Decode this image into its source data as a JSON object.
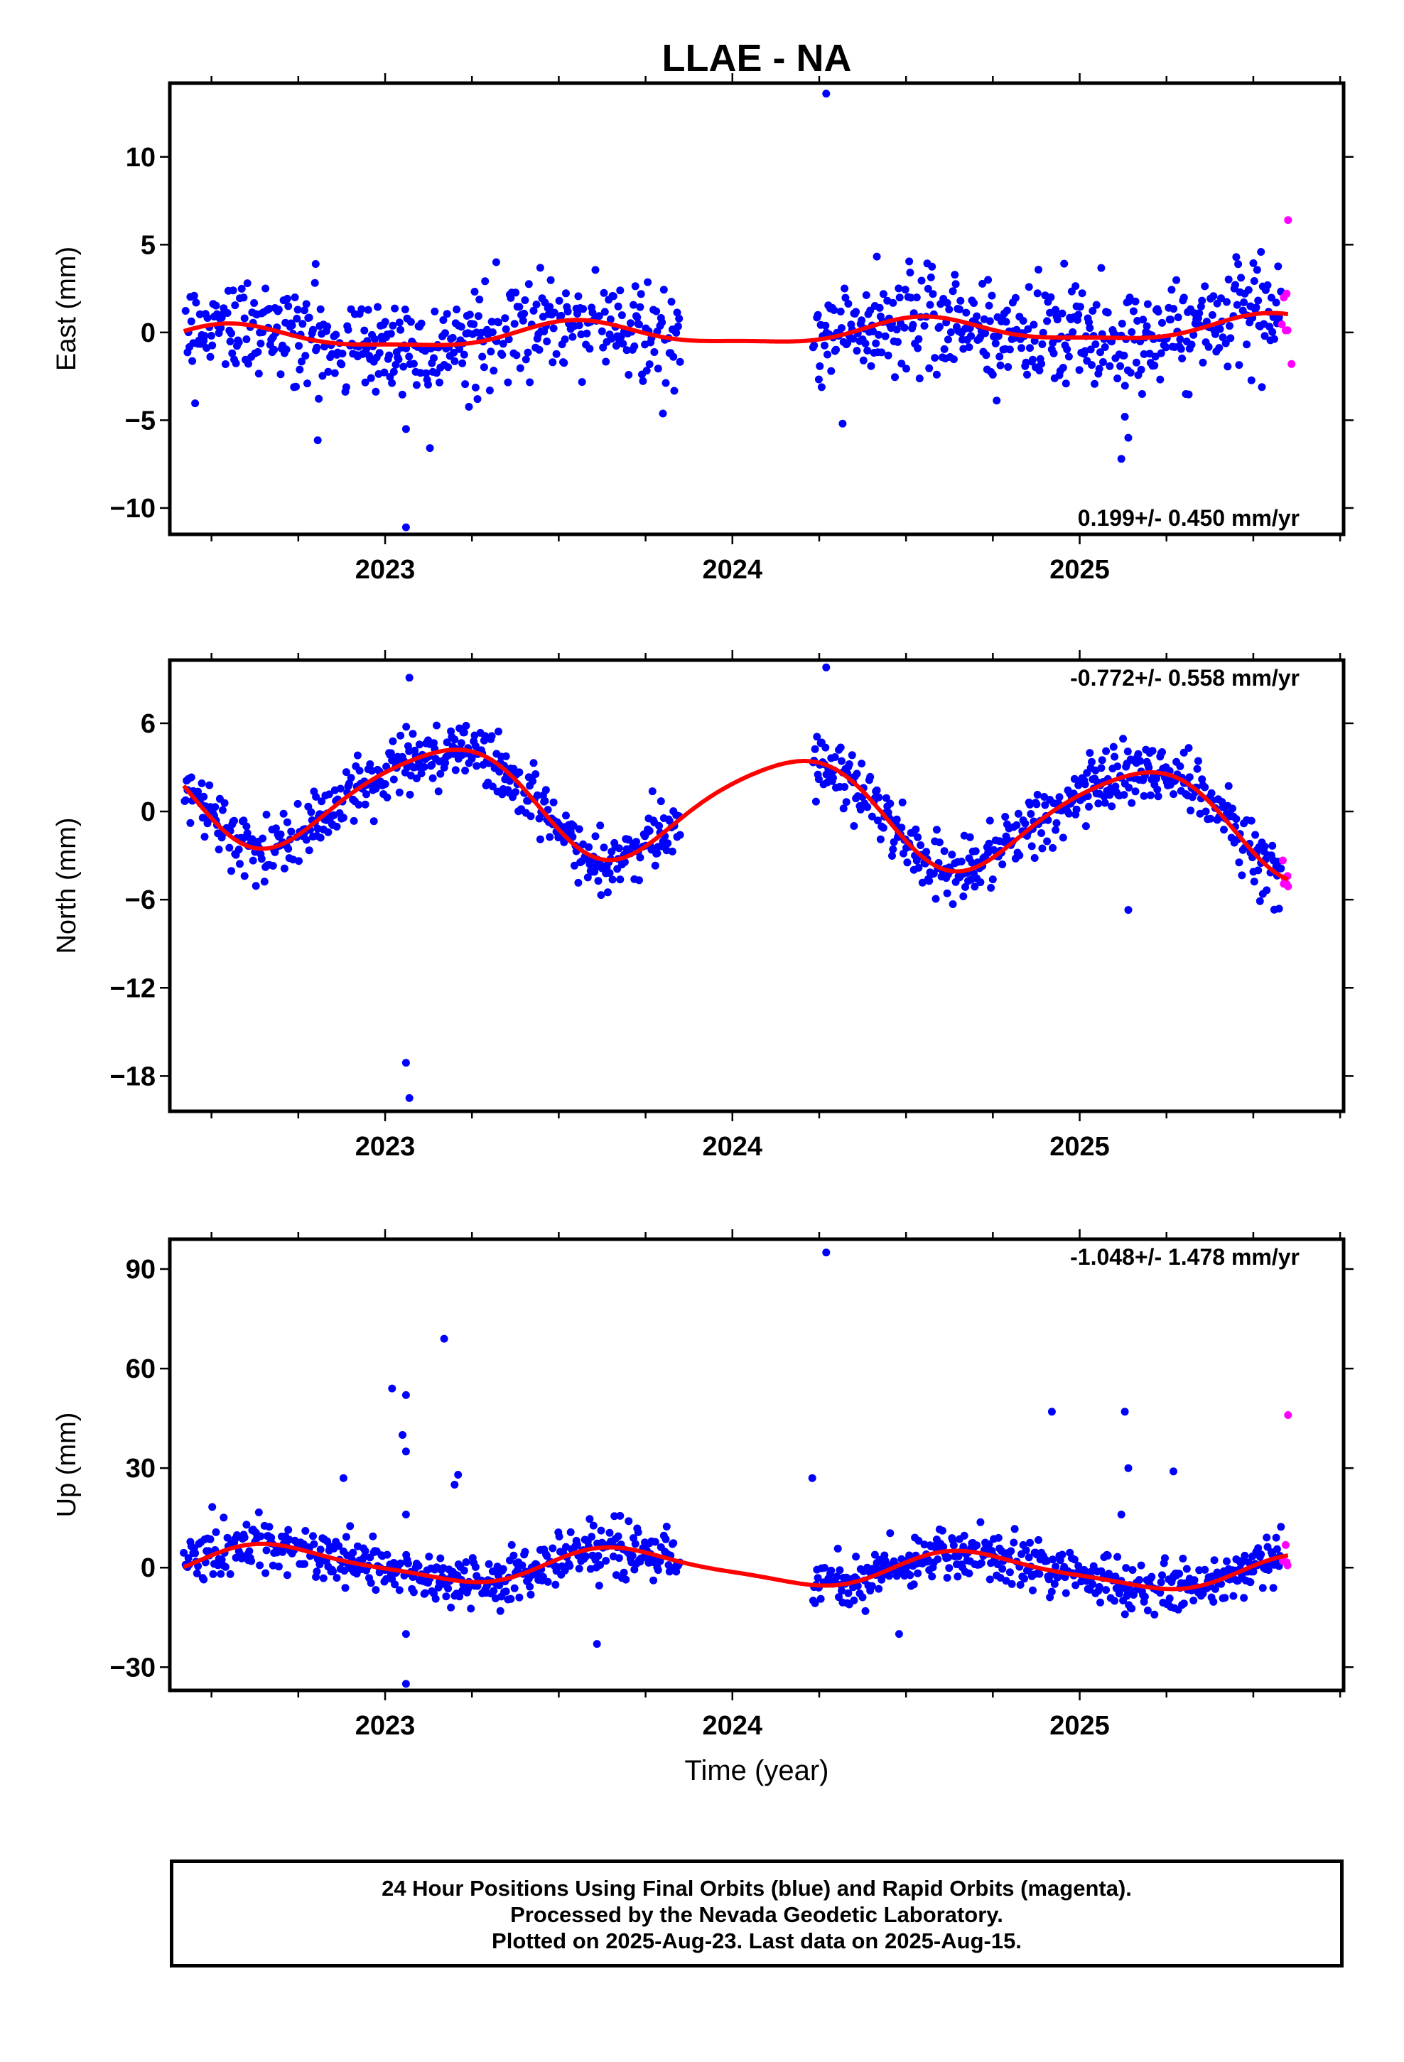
{
  "figure": {
    "title": "LLAE - NA",
    "xlabel": "Time (year)",
    "footer": [
      "24 Hour Positions Using Final Orbits (blue) and Rapid Orbits (magenta).",
      "Processed by the Nevada Geodetic Laboratory.",
      "Plotted on 2025-Aug-23. Last data on 2025-Aug-15."
    ]
  },
  "colors": {
    "final": "#0000ff",
    "rapid": "#ff00ff",
    "model": "#ff0000",
    "frame": "#000000"
  },
  "chart_data": [
    {
      "type": "scatter",
      "component": "east",
      "ylabel": "East (mm)",
      "rate_label": "0.199+/- 0.450 mm/yr",
      "rate_position": "bottom-right",
      "xlim": [
        2022.38,
        2025.76
      ],
      "ylim": [
        -11.5,
        14.2
      ],
      "yticks": [
        -10,
        -5,
        0,
        5,
        10
      ],
      "xticks": [
        2023,
        2024,
        2025
      ],
      "model": {
        "offset": -0.05,
        "trend": 0.199,
        "annual_amp": 0.65,
        "annual_phase_deg": 250,
        "semiannual_amp": 0.2,
        "semiannual_phase_deg": 60,
        "ref_year": 2024.0
      },
      "data_span": [
        2022.42,
        2025.6
      ],
      "data_gap": [
        2023.85,
        2024.23
      ],
      "noise_sd": 1.4,
      "rapid_start": 2025.58,
      "outliers": [
        [
          2024.27,
          13.6
        ],
        [
          2023.06,
          -11.1
        ],
        [
          2023.06,
          -5.5
        ],
        [
          2025.12,
          -7.2
        ],
        [
          2025.14,
          -6.0
        ],
        [
          2025.13,
          -4.8
        ],
        [
          2025.6,
          6.4
        ],
        [
          2025.61,
          -1.8
        ],
        [
          2023.32,
          4.0
        ],
        [
          2022.8,
          3.9
        ]
      ]
    },
    {
      "type": "scatter",
      "component": "north",
      "ylabel": "North (mm)",
      "rate_label": "-0.772+/- 0.558 mm/yr",
      "rate_position": "top-right",
      "xlim": [
        2022.38,
        2025.76
      ],
      "ylim": [
        -20.4,
        10.3
      ],
      "yticks": [
        -18,
        -12,
        -6,
        0,
        6
      ],
      "xticks": [
        2023,
        2024,
        2025
      ],
      "model": {
        "offset": 0.3,
        "trend": -0.772,
        "annual_amp": 3.5,
        "annual_phase_deg": 30,
        "semiannual_amp": 0.5,
        "semiannual_phase_deg": 200,
        "ref_year": 2024.0
      },
      "data_span": [
        2022.42,
        2025.6
      ],
      "data_gap": [
        2023.85,
        2024.23
      ],
      "noise_sd": 1.1,
      "rapid_start": 2025.58,
      "outliers": [
        [
          2024.27,
          9.8
        ],
        [
          2023.07,
          9.1
        ],
        [
          2023.06,
          -17.1
        ],
        [
          2023.07,
          -19.5
        ],
        [
          2025.14,
          -6.7
        ],
        [
          2025.6,
          -5.1
        ],
        [
          2023.2,
          4.9
        ],
        [
          2025.3,
          4.0
        ]
      ]
    },
    {
      "type": "scatter",
      "component": "up",
      "ylabel": "Up (mm)",
      "rate_label": "-1.048+/- 1.478 mm/yr",
      "rate_position": "top-right",
      "xlim": [
        2022.38,
        2025.76
      ],
      "ylim": [
        -37,
        99
      ],
      "yticks": [
        -30,
        0,
        30,
        60,
        90
      ],
      "xticks": [
        2023,
        2024,
        2025
      ],
      "model": {
        "offset": 0.0,
        "trend": -1.048,
        "annual_amp": 5.0,
        "annual_phase_deg": 200,
        "semiannual_amp": 1.2,
        "semiannual_phase_deg": 20,
        "ref_year": 2024.0
      },
      "data_span": [
        2022.42,
        2025.6
      ],
      "data_gap": [
        2023.85,
        2024.23
      ],
      "noise_sd": 3.8,
      "rapid_start": 2025.58,
      "outliers": [
        [
          2024.27,
          95
        ],
        [
          2023.17,
          69
        ],
        [
          2023.02,
          54
        ],
        [
          2023.06,
          52
        ],
        [
          2023.05,
          40
        ],
        [
          2023.06,
          35
        ],
        [
          2023.2,
          25
        ],
        [
          2023.21,
          28
        ],
        [
          2022.88,
          27
        ],
        [
          2024.23,
          27
        ],
        [
          2024.92,
          47
        ],
        [
          2025.13,
          47
        ],
        [
          2025.14,
          30
        ],
        [
          2025.27,
          29
        ],
        [
          2025.6,
          46
        ],
        [
          2023.06,
          -20
        ],
        [
          2023.06,
          -35
        ],
        [
          2023.61,
          -23
        ],
        [
          2024.48,
          -20
        ],
        [
          2025.12,
          16
        ],
        [
          2023.06,
          16
        ]
      ]
    }
  ]
}
